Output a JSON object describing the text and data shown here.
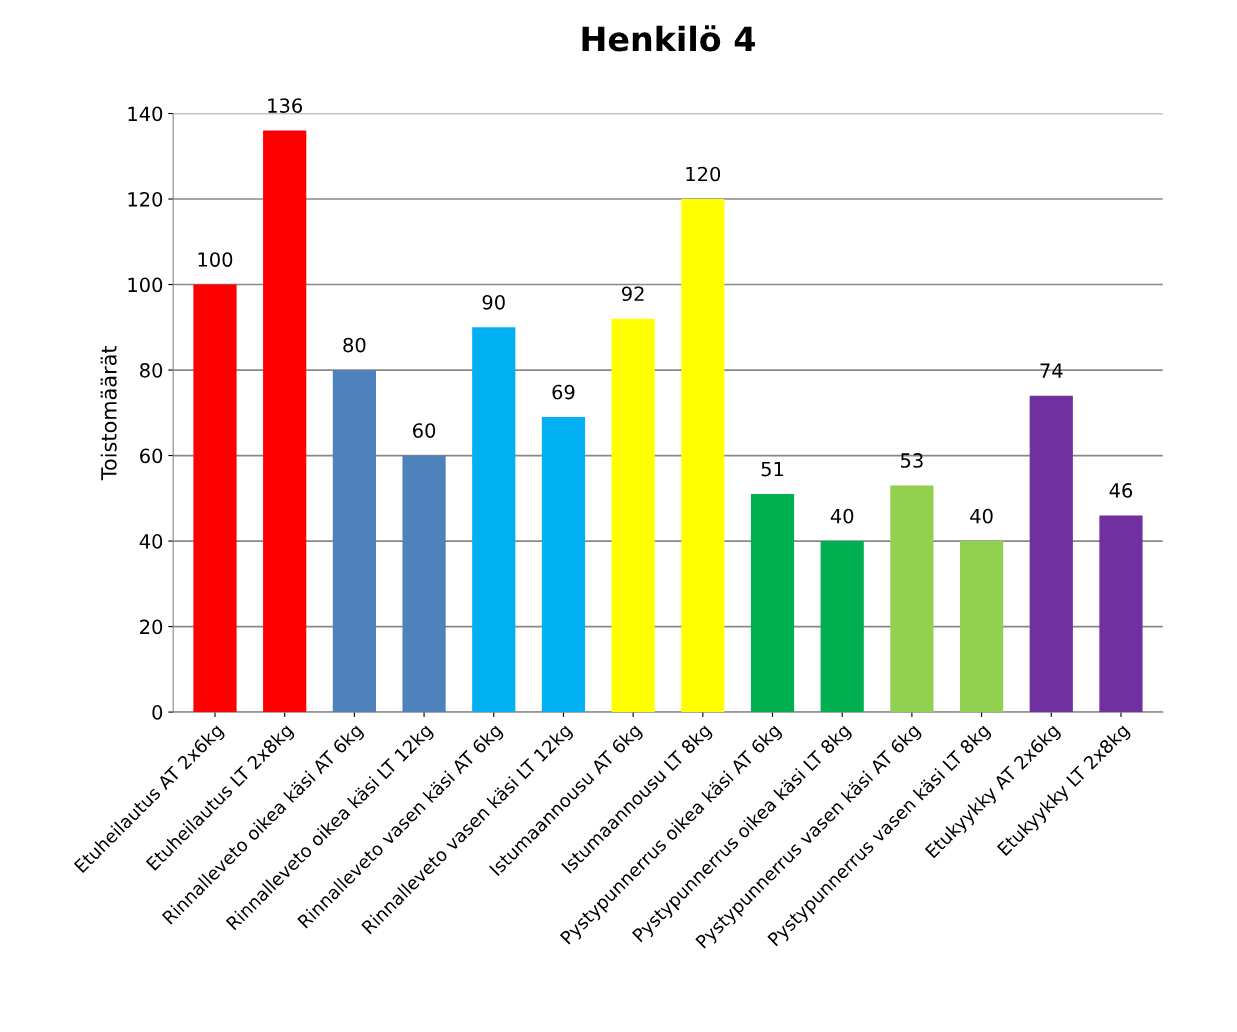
{
  "chart_data": {
    "type": "bar",
    "title": "Henkilö 4",
    "ylabel": "Toistomäärät",
    "categories": [
      "Etuheilautus AT 2x6kg",
      "Etuheilautus LT 2x8kg",
      "Rinnalleveto oikea käsi AT 6kg",
      "Rinnalleveto oikea käsi LT 12kg",
      "Rinnalleveto vasen käsi AT 6kg",
      "Rinnalleveto vasen käsi LT 12kg",
      "Istumaannousu AT 6kg",
      "Istumaannousu LT 8kg",
      "Pystypunnerrus oikea käsi AT 6kg",
      "Pystypunnerrus oikea käsi LT 8kg",
      "Pystypunnerrus vasen käsi AT 6kg",
      "Pystypunnerrus vasen käsi LT 8kg",
      "Etukyykky AT 2x6kg",
      "Etukyykky LT 2x8kg"
    ],
    "values": [
      100,
      136,
      80,
      60,
      90,
      69,
      92,
      120,
      51,
      40,
      53,
      40,
      74,
      46
    ],
    "colors": [
      "#ff0000",
      "#ff0000",
      "#4f81bd",
      "#4f81bd",
      "#00b0f0",
      "#00b0f0",
      "#ffff00",
      "#ffff00",
      "#00b050",
      "#00b050",
      "#92d050",
      "#92d050",
      "#7030a0",
      "#7030a0"
    ],
    "ylim": [
      0,
      140
    ],
    "yticks": [
      0,
      20,
      40,
      60,
      80,
      100,
      120,
      140
    ],
    "grid": "y",
    "data_labels": true,
    "legend": false
  }
}
